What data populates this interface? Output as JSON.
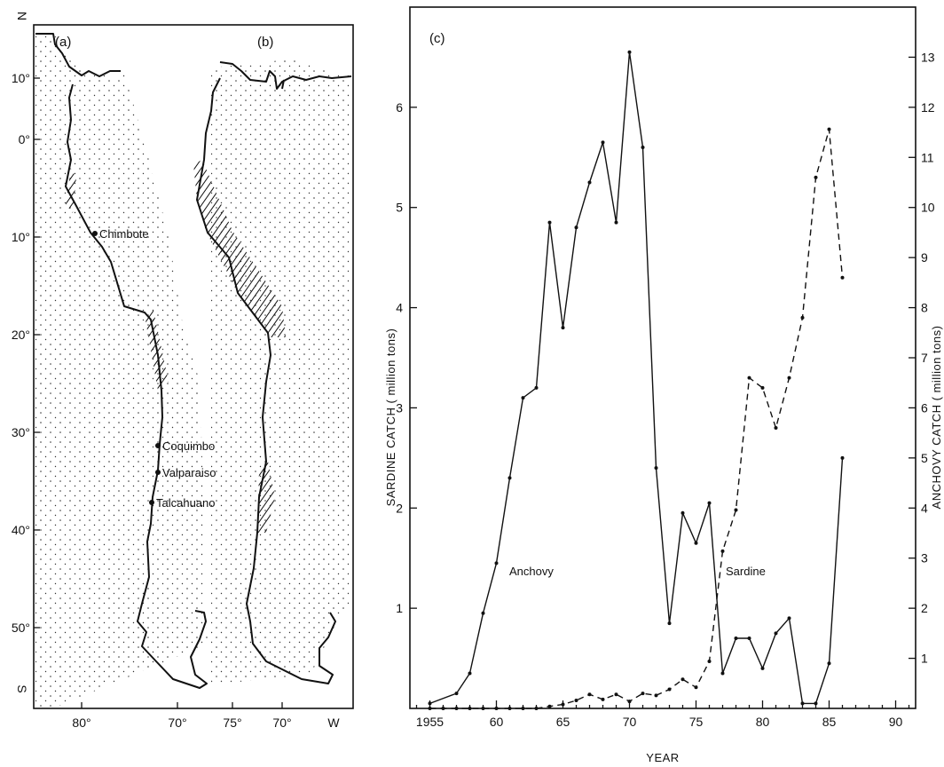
{
  "maps": {
    "lat_labels": [
      "N",
      "10°",
      "0°",
      "10°",
      "20°",
      "30°",
      "40°",
      "50°",
      "S"
    ],
    "panel_a": {
      "label": "(a)",
      "lon_labels": [
        "80°",
        "70°"
      ],
      "cities": [
        "Chimbote",
        "Coquimbo",
        "Valparaiso",
        "Talcahuano"
      ]
    },
    "panel_b": {
      "label": "(b)",
      "lon_labels": [
        "75°",
        "70°",
        "W"
      ]
    }
  },
  "chart_data": {
    "type": "line",
    "panel_label": "(c)",
    "xlabel": "YEAR",
    "ylabel_left": "SARDINE CATCH ( million tons)",
    "ylabel_right": "ANCHOVY CATCH ( million tons)",
    "x_tick_labels": [
      "1955",
      "60",
      "65",
      "70",
      "75",
      "80",
      "85",
      "90"
    ],
    "y_left_tick_labels": [
      "1",
      "2",
      "3",
      "4",
      "5",
      "6"
    ],
    "y_right_tick_labels": [
      "1",
      "2",
      "3",
      "4",
      "5",
      "6",
      "7",
      "8",
      "9",
      "10",
      "11",
      "12",
      "13"
    ],
    "xlim": [
      1953.5,
      1991.5
    ],
    "ylim_left": [
      0,
      7
    ],
    "ylim_right": [
      0,
      14
    ],
    "series": [
      {
        "name": "Anchovy",
        "axis": "right",
        "x": [
          1955,
          1957,
          1958,
          1959,
          1960,
          1961,
          1962,
          1963,
          1964,
          1965,
          1966,
          1967,
          1968,
          1969,
          1970,
          1971,
          1972,
          1973,
          1974,
          1975,
          1976,
          1977,
          1978,
          1979,
          1980,
          1981,
          1982,
          1983,
          1984,
          1985,
          1986
        ],
        "values": [
          0.1,
          0.3,
          0.7,
          1.9,
          2.9,
          4.6,
          6.2,
          6.4,
          9.7,
          7.6,
          9.6,
          10.5,
          11.3,
          9.7,
          13.1,
          11.2,
          4.8,
          1.7,
          3.9,
          3.3,
          4.1,
          0.7,
          1.4,
          1.4,
          0.8,
          1.5,
          1.8,
          0.1,
          0.1,
          0.9,
          5.0
        ]
      },
      {
        "name": "Sardine",
        "axis": "left",
        "x": [
          1955,
          1956,
          1957,
          1958,
          1959,
          1960,
          1961,
          1962,
          1963,
          1964,
          1965,
          1966,
          1967,
          1968,
          1969,
          1970,
          1971,
          1972,
          1973,
          1974,
          1975,
          1976,
          1977,
          1978,
          1979,
          1980,
          1981,
          1982,
          1983,
          1984,
          1985,
          1986
        ],
        "values": [
          0.0,
          0.0,
          0.0,
          0.0,
          0.0,
          0.0,
          0.0,
          0.0,
          0.0,
          0.02,
          0.04,
          0.08,
          0.14,
          0.09,
          0.14,
          0.07,
          0.15,
          0.13,
          0.19,
          0.29,
          0.21,
          0.47,
          1.57,
          1.98,
          3.3,
          3.2,
          2.8,
          3.3,
          3.9,
          5.3,
          5.78,
          4.3
        ]
      }
    ]
  }
}
